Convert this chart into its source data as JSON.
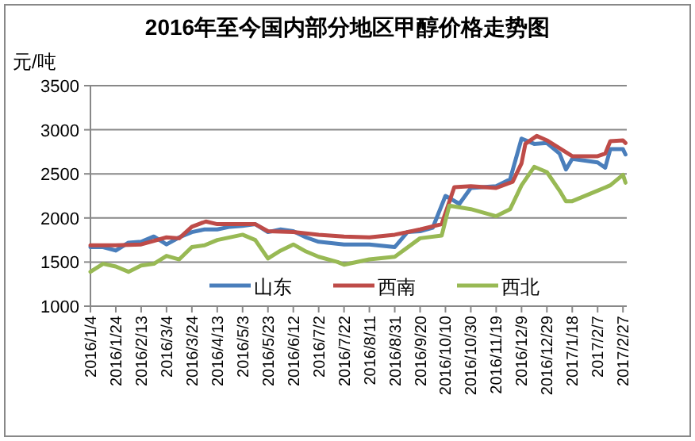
{
  "chart_data": {
    "type": "line",
    "title": "2016年至今国内部分地区甲醇价格走势图",
    "ylabel": "元/吨",
    "xlim": [
      "2016-01-04",
      "2017-03-02"
    ],
    "ylim": [
      1000,
      3500
    ],
    "yticks": [
      1000,
      1500,
      2000,
      2500,
      3000,
      3500
    ],
    "xticks": [
      {
        "value": "2016-01-04",
        "label": "2016/1/4"
      },
      {
        "value": "2016-01-24",
        "label": "2016/1/24"
      },
      {
        "value": "2016-02-13",
        "label": "2016/2/13"
      },
      {
        "value": "2016-03-04",
        "label": "2016/3/4"
      },
      {
        "value": "2016-03-24",
        "label": "2016/3/24"
      },
      {
        "value": "2016-04-13",
        "label": "2016/4/13"
      },
      {
        "value": "2016-05-03",
        "label": "2016/5/3"
      },
      {
        "value": "2016-05-23",
        "label": "2016/5/23"
      },
      {
        "value": "2016-06-12",
        "label": "2016/6/12"
      },
      {
        "value": "2016-07-02",
        "label": "2016/7/2"
      },
      {
        "value": "2016-07-22",
        "label": "2016/7/22"
      },
      {
        "value": "2016-08-11",
        "label": "2016/8/11"
      },
      {
        "value": "2016-08-31",
        "label": "2016/8/31"
      },
      {
        "value": "2016-09-20",
        "label": "2016/9/20"
      },
      {
        "value": "2016-10-10",
        "label": "2016/10/10"
      },
      {
        "value": "2016-10-30",
        "label": "2016/10/30"
      },
      {
        "value": "2016-11-19",
        "label": "2016/11/19"
      },
      {
        "value": "2016-12-09",
        "label": "2016/12/9"
      },
      {
        "value": "2016-12-29",
        "label": "2016/12/29"
      },
      {
        "value": "2017-01-18",
        "label": "2017/1/18"
      },
      {
        "value": "2017-02-07",
        "label": "2017/2/7"
      },
      {
        "value": "2017-02-27",
        "label": "2017/2/27"
      }
    ],
    "grid": "y",
    "legend": "bottom",
    "series": [
      {
        "name": "山东",
        "color": "#4a7ebb",
        "x": [
          "2016-01-04",
          "2016-01-14",
          "2016-01-24",
          "2016-02-03",
          "2016-02-13",
          "2016-02-23",
          "2016-03-04",
          "2016-03-14",
          "2016-03-24",
          "2016-04-03",
          "2016-04-13",
          "2016-04-23",
          "2016-05-03",
          "2016-05-13",
          "2016-05-23",
          "2016-06-02",
          "2016-06-12",
          "2016-06-22",
          "2016-07-02",
          "2016-07-22",
          "2016-08-11",
          "2016-08-31",
          "2016-09-10",
          "2016-09-20",
          "2016-09-30",
          "2016-10-10",
          "2016-10-21",
          "2016-10-30",
          "2016-11-19",
          "2016-11-30",
          "2016-12-09",
          "2016-12-19",
          "2016-12-29",
          "2017-01-08",
          "2017-01-13",
          "2017-01-18",
          "2017-02-07",
          "2017-02-13",
          "2017-02-17",
          "2017-02-27",
          "2017-03-01"
        ],
        "values": [
          1670,
          1670,
          1630,
          1720,
          1730,
          1790,
          1700,
          1780,
          1840,
          1870,
          1870,
          1900,
          1910,
          1930,
          1840,
          1870,
          1850,
          1780,
          1730,
          1700,
          1700,
          1670,
          1840,
          1850,
          1890,
          2250,
          2160,
          2340,
          2360,
          2440,
          2900,
          2840,
          2850,
          2730,
          2550,
          2670,
          2630,
          2570,
          2780,
          2780,
          2720
        ]
      },
      {
        "name": "西南",
        "color": "#be4b48",
        "x": [
          "2016-01-04",
          "2016-01-24",
          "2016-02-13",
          "2016-03-04",
          "2016-03-14",
          "2016-03-24",
          "2016-04-04",
          "2016-04-13",
          "2016-05-03",
          "2016-05-13",
          "2016-05-23",
          "2016-06-12",
          "2016-07-02",
          "2016-07-22",
          "2016-08-11",
          "2016-08-31",
          "2016-09-20",
          "2016-10-07",
          "2016-10-17",
          "2016-10-30",
          "2016-11-19",
          "2016-12-02",
          "2016-12-09",
          "2016-12-12",
          "2016-12-21",
          "2016-12-29",
          "2017-01-08",
          "2017-01-18",
          "2017-02-07",
          "2017-02-13",
          "2017-02-17",
          "2017-02-27",
          "2017-03-01"
        ],
        "values": [
          1690,
          1690,
          1700,
          1780,
          1770,
          1900,
          1960,
          1930,
          1930,
          1930,
          1850,
          1840,
          1810,
          1790,
          1780,
          1810,
          1870,
          1930,
          2350,
          2360,
          2340,
          2410,
          2620,
          2840,
          2930,
          2880,
          2790,
          2700,
          2700,
          2730,
          2870,
          2880,
          2850
        ]
      },
      {
        "name": "西北",
        "color": "#98b954",
        "x": [
          "2016-01-04",
          "2016-01-14",
          "2016-01-24",
          "2016-02-03",
          "2016-02-13",
          "2016-02-23",
          "2016-03-04",
          "2016-03-14",
          "2016-03-24",
          "2016-04-03",
          "2016-04-13",
          "2016-05-03",
          "2016-05-13",
          "2016-05-23",
          "2016-06-02",
          "2016-06-12",
          "2016-06-22",
          "2016-07-02",
          "2016-07-17",
          "2016-07-22",
          "2016-08-11",
          "2016-08-31",
          "2016-09-20",
          "2016-10-07",
          "2016-10-13",
          "2016-10-30",
          "2016-11-19",
          "2016-11-30",
          "2016-12-09",
          "2016-12-19",
          "2016-12-29",
          "2017-01-08",
          "2017-01-13",
          "2017-01-18",
          "2017-02-07",
          "2017-02-17",
          "2017-02-27",
          "2017-03-01"
        ],
        "values": [
          1390,
          1480,
          1450,
          1390,
          1460,
          1480,
          1570,
          1530,
          1670,
          1690,
          1750,
          1810,
          1750,
          1540,
          1630,
          1700,
          1620,
          1560,
          1500,
          1470,
          1530,
          1560,
          1770,
          1800,
          2140,
          2100,
          2020,
          2100,
          2370,
          2580,
          2520,
          2310,
          2190,
          2190,
          2310,
          2370,
          2490,
          2400
        ]
      }
    ]
  }
}
